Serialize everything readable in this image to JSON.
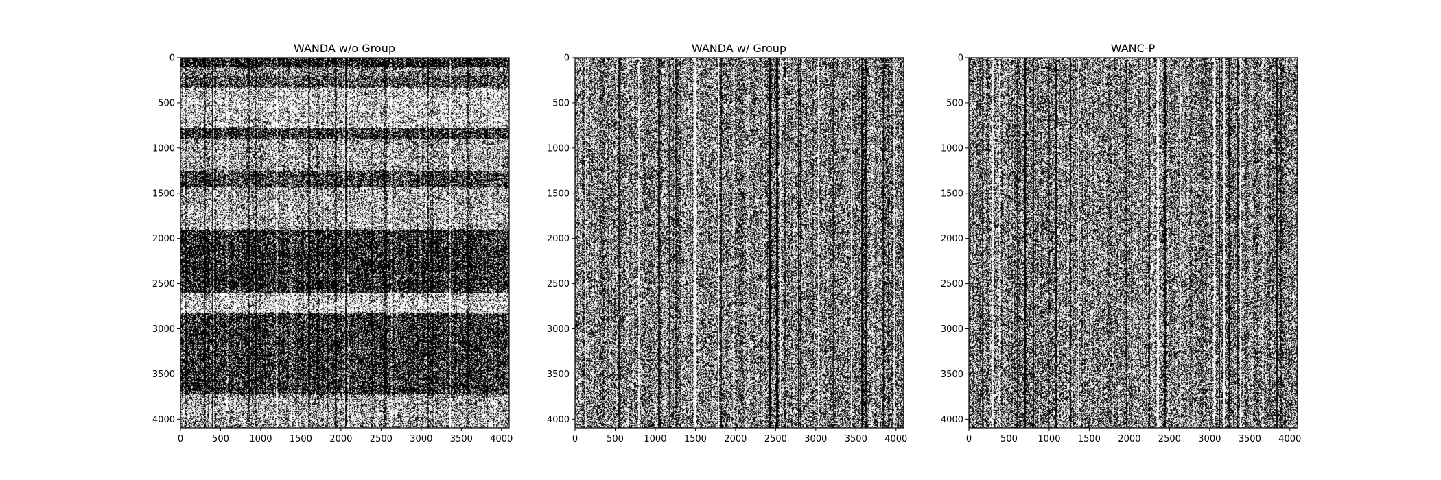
{
  "chart_data": [
    {
      "type": "heatmap",
      "title": "WANDA w/o Group",
      "colormap": [
        "#ffffff",
        "#000000"
      ],
      "xlim": [
        0,
        4096
      ],
      "ylim": [
        4096,
        0
      ],
      "xticks": [
        0,
        500,
        1000,
        1500,
        2000,
        2500,
        3000,
        3500,
        4000
      ],
      "yticks": [
        0,
        500,
        1000,
        1500,
        2000,
        2500,
        3000,
        3500,
        4000
      ],
      "pattern": "row-and-column structured",
      "row_density_bands": [
        {
          "y": [
            0,
            100
          ],
          "density": 0.85
        },
        {
          "y": [
            100,
            200
          ],
          "density": 0.5
        },
        {
          "y": [
            200,
            330
          ],
          "density": 0.65
        },
        {
          "y": [
            330,
            780
          ],
          "density": 0.3
        },
        {
          "y": [
            780,
            900
          ],
          "density": 0.75
        },
        {
          "y": [
            900,
            1250
          ],
          "density": 0.38
        },
        {
          "y": [
            1250,
            1430
          ],
          "density": 0.72
        },
        {
          "y": [
            1430,
            1900
          ],
          "density": 0.36
        },
        {
          "y": [
            1900,
            2600
          ],
          "density": 0.78
        },
        {
          "y": [
            2600,
            2820
          ],
          "density": 0.28
        },
        {
          "y": [
            2820,
            3720
          ],
          "density": 0.76
        },
        {
          "y": [
            3720,
            4096
          ],
          "density": 0.38
        }
      ]
    },
    {
      "type": "heatmap",
      "title": "WANDA w/ Group",
      "colormap": [
        "#ffffff",
        "#000000"
      ],
      "xlim": [
        0,
        4096
      ],
      "ylim": [
        4096,
        0
      ],
      "xticks": [
        0,
        500,
        1000,
        1500,
        2000,
        2500,
        3000,
        3500,
        4000
      ],
      "yticks": [
        0,
        500,
        1000,
        1500,
        2000,
        2500,
        3000,
        3500,
        4000
      ],
      "pattern": "column structured",
      "mean_density": 0.5
    },
    {
      "type": "heatmap",
      "title": "WANC-P",
      "colormap": [
        "#ffffff",
        "#000000"
      ],
      "xlim": [
        0,
        4096
      ],
      "ylim": [
        4096,
        0
      ],
      "xticks": [
        0,
        500,
        1000,
        1500,
        2000,
        2500,
        3000,
        3500,
        4000
      ],
      "yticks": [
        0,
        500,
        1000,
        1500,
        2000,
        2500,
        3000,
        3500,
        4000
      ],
      "pattern": "column structured",
      "mean_density": 0.5
    }
  ]
}
